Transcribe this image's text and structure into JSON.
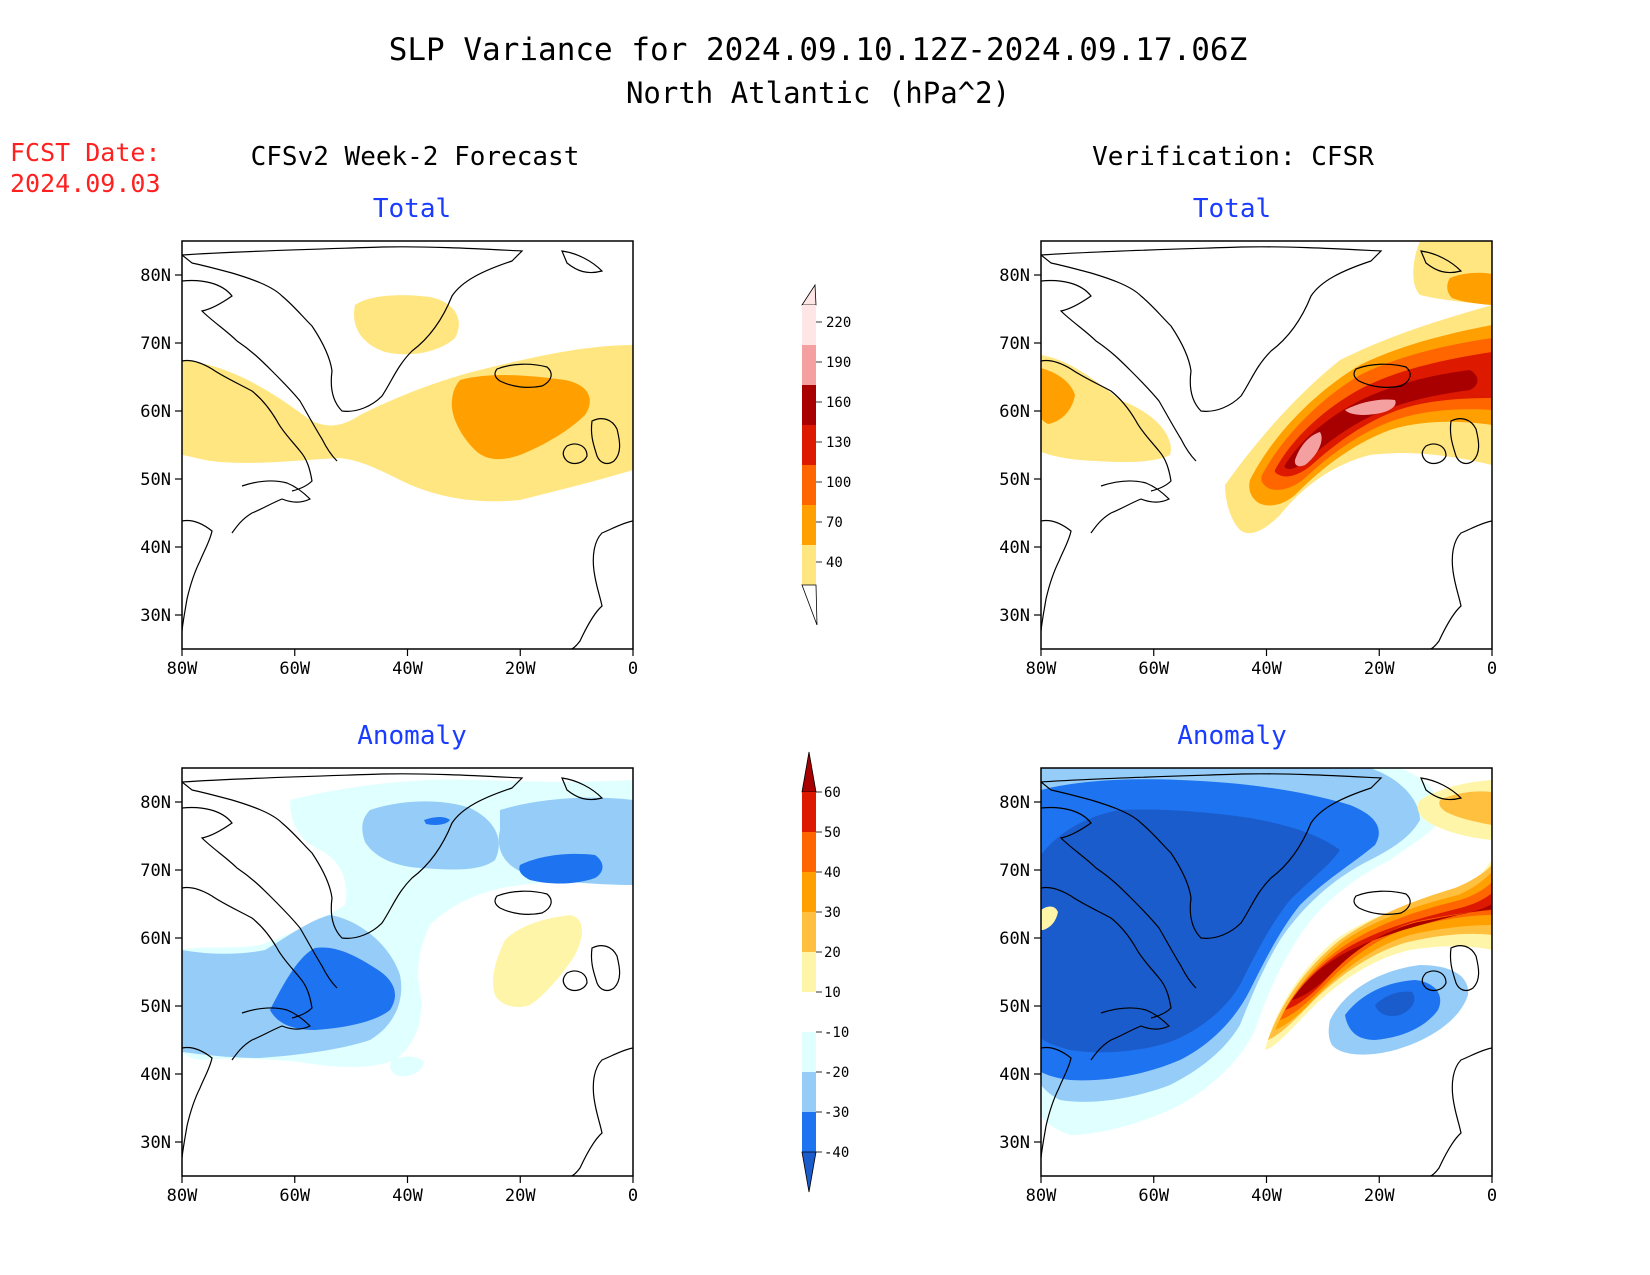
{
  "title_line1": "SLP Variance for 2024.09.10.12Z-2024.09.17.06Z",
  "title_line2": "North Atlantic (hPa^2)",
  "fcst_date": {
    "label": "FCST Date:",
    "value": "2024.09.03",
    "color": "#ff2020"
  },
  "column_titles": {
    "left": "CFSv2 Week-2 Forecast",
    "right": "Verification: CFSR"
  },
  "panel_titles": {
    "total": "Total",
    "anomaly": "Anomaly",
    "color": "#1a3cff"
  },
  "axes": {
    "lat_ticks": [
      "80N",
      "70N",
      "60N",
      "50N",
      "40N",
      "30N"
    ],
    "lon_ticks": [
      "80W",
      "60W",
      "40W",
      "20W",
      "0"
    ],
    "lat_range": [
      25,
      85
    ],
    "lon_range": [
      -80,
      0
    ]
  },
  "colorbar_total": {
    "labels": [
      "220",
      "190",
      "160",
      "130",
      "100",
      "70",
      "40"
    ],
    "colors": [
      "#ffe6e6",
      "#f4a0a0",
      "#a80000",
      "#dd1a00",
      "#ff6600",
      "#ffa000",
      "#ffe680"
    ]
  },
  "colorbar_anomaly": {
    "labels": [
      "60",
      "50",
      "40",
      "30",
      "20",
      "10",
      "-10",
      "-20",
      "-30",
      "-40"
    ],
    "colors": [
      "#a80000",
      "#dd1a00",
      "#ff6600",
      "#ffa000",
      "#ffc040",
      "#fff5a8",
      "#ffffff",
      "#e0ffff",
      "#96cdf8",
      "#1e73f0",
      "#1a5ccc"
    ]
  },
  "panels": [
    {
      "name": "forecast-total",
      "column": "left",
      "type": "total"
    },
    {
      "name": "verification-total",
      "column": "right",
      "type": "total"
    },
    {
      "name": "forecast-anomaly",
      "column": "left",
      "type": "anomaly"
    },
    {
      "name": "verification-anomaly",
      "column": "right",
      "type": "anomaly"
    }
  ]
}
